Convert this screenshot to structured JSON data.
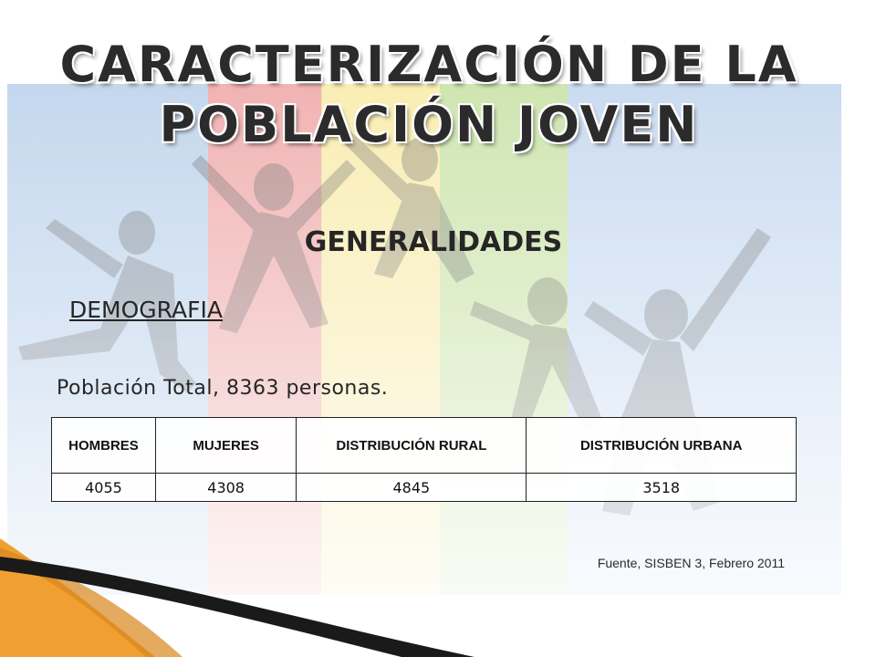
{
  "slide": {
    "title_line1": "CARACTERIZACIÓN DE LA",
    "title_line2": "POBLACIÓN JOVEN",
    "subtitle": "GENERALIDADES",
    "section": "DEMOGRAFIA",
    "population_text": "Población Total, 8363 personas.",
    "table": {
      "headers": [
        "HOMBRES",
        "MUJERES",
        "DISTRIBUCIÓN RURAL",
        "DISTRIBUCIÓN URBANA"
      ],
      "row": [
        "4055",
        "4308",
        "4845",
        "3518"
      ]
    },
    "source": "Fuente, SISBEN 3, Febrero 2011"
  },
  "colors": {
    "panel_blue": "#a9c4e4",
    "panel_red": "#e98787",
    "panel_yellow": "#f6e58e",
    "panel_green": "#b7d98b",
    "swoosh_orange": "#f0a032",
    "swoosh_dark": "#1a1a1a"
  }
}
